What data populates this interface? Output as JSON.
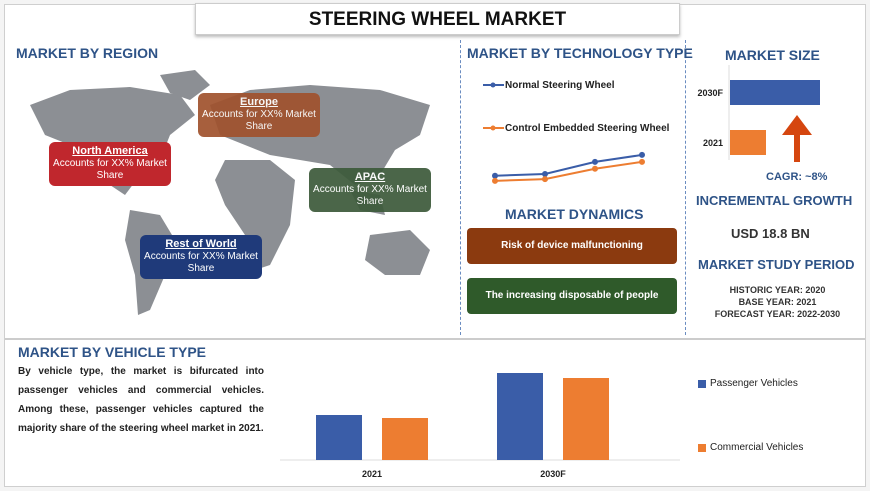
{
  "title": "STEERING WHEEL MARKET",
  "region": {
    "heading": "MARKET BY REGION",
    "boxes": [
      {
        "name": "North America",
        "text": "Accounts for XX% Market Share",
        "color": "#c0272d"
      },
      {
        "name": "Europe",
        "text": "Accounts for XX% Market Share",
        "color": "#a0522d"
      },
      {
        "name": "APAC",
        "text": "Accounts for XX% Market Share",
        "color": "#3c5a3a"
      },
      {
        "name": "Rest of World",
        "text": "Accounts for XX% Market Share",
        "color": "#1f3a7a"
      }
    ]
  },
  "technology": {
    "heading": "MARKET BY TECHNOLOGY TYPE"
  },
  "dynamics": {
    "heading": "MARKET DYNAMICS",
    "items": [
      {
        "text": "Risk of device malfunctioning",
        "color": "#8b3a0f"
      },
      {
        "text": "The increasing disposable of people",
        "color": "#2f5a2a"
      }
    ]
  },
  "market_size": {
    "heading": "MARKET SIZE",
    "cagr": "CAGR:  ~8%"
  },
  "incremental": {
    "heading": "INCREMENTAL GROWTH",
    "value": "USD 18.8 BN"
  },
  "study": {
    "heading": "MARKET STUDY PERIOD",
    "historic": "HISTORIC YEAR: 2020",
    "base": "BASE YEAR: 2021",
    "forecast": "FORECAST YEAR: 2022-2030"
  },
  "vehicle": {
    "heading": "MARKET BY VEHICLE TYPE",
    "text": "By vehicle type, the market is bifurcated into passenger vehicles and commercial vehicles. Among these, passenger vehicles captured the majority share of the steering wheel market in 2021."
  },
  "chart_data": [
    {
      "type": "line",
      "series": [
        {
          "name": "Normal Steering Wheel",
          "values": [
            1.0,
            1.1,
            1.8,
            2.2
          ],
          "color": "#3a5da8"
        },
        {
          "name": "Control Embedded Steering Wheel",
          "values": [
            0.7,
            0.8,
            1.4,
            1.8
          ],
          "color": "#ed7d31"
        }
      ],
      "ylim": [
        0,
        2.6
      ]
    },
    {
      "type": "bar",
      "orientation": "horizontal",
      "categories": [
        "2030F",
        "2021"
      ],
      "values": [
        100,
        40
      ],
      "colors": [
        "#3a5da8",
        "#ed7d31"
      ]
    },
    {
      "type": "bar",
      "categories": [
        "2021",
        "2030F"
      ],
      "series": [
        {
          "name": "Passenger Vehicles",
          "values": [
            45,
            87
          ],
          "color": "#3a5da8"
        },
        {
          "name": "Commercial Vehicles",
          "values": [
            42,
            82
          ],
          "color": "#ed7d31"
        }
      ],
      "ylim": [
        0,
        90
      ]
    }
  ]
}
